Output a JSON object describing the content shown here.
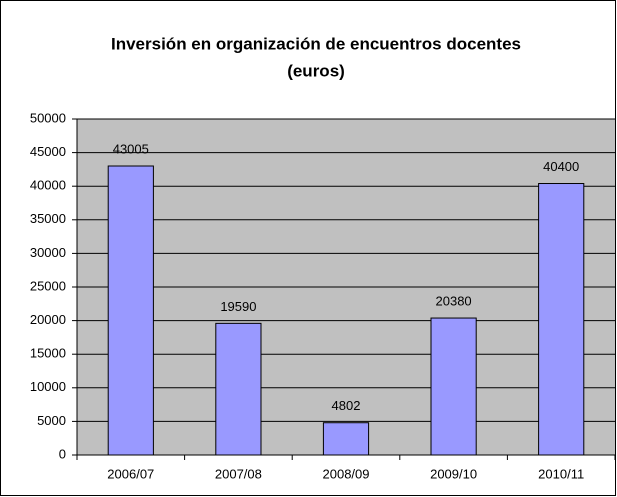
{
  "chart_data": {
    "type": "bar",
    "title": [
      "Inversión en organización de encuentros docentes",
      "(euros)"
    ],
    "categories": [
      "2006/07",
      "2007/08",
      "2008/09",
      "2009/10",
      "2010/11"
    ],
    "values": [
      43005,
      19590,
      4802,
      20380,
      40400
    ],
    "color": "#9999ff",
    "plot_background": "#c0c0c0",
    "ylim": [
      0,
      50000
    ],
    "yticks": [
      0,
      5000,
      10000,
      15000,
      20000,
      25000,
      30000,
      35000,
      40000,
      45000,
      50000
    ],
    "grid": true,
    "data_labels": true
  }
}
